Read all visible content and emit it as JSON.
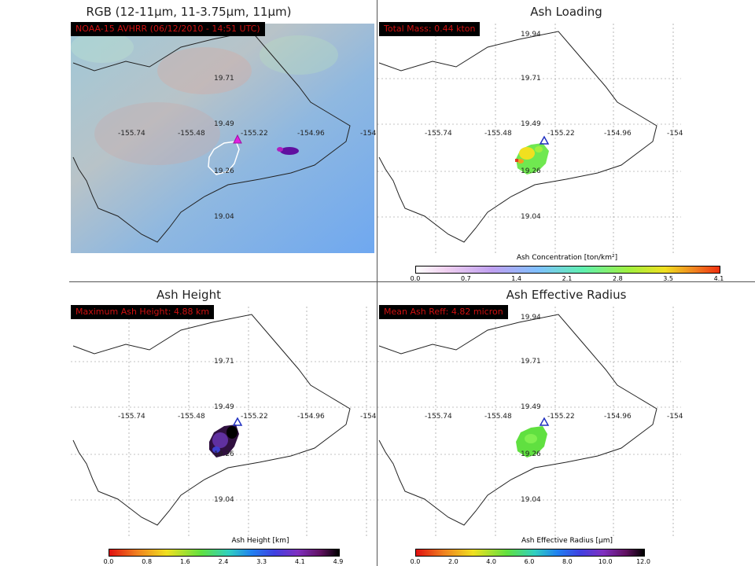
{
  "panels": {
    "rgb": {
      "title": "RGB (12-11µm, 11-3.75µm, 11µm)",
      "banner": "NOAA-15 AVHRR (06/12/2010 - 14:51 UTC)"
    },
    "loading": {
      "title": "Ash Loading",
      "banner": "Total Mass: 0.44 kton",
      "cbar_title": "Ash Concentration [ton/km²]",
      "ticks": [
        "0.0",
        "0.7",
        "1.4",
        "2.1",
        "2.8",
        "3.5",
        "4.1"
      ]
    },
    "height": {
      "title": "Ash Height",
      "banner": "Maximum Ash Height: 4.88 km",
      "cbar_title": "Ash Height [km]",
      "ticks": [
        "0.0",
        "0.8",
        "1.6",
        "2.4",
        "3.3",
        "4.1",
        "4.9"
      ]
    },
    "reff": {
      "title": "Ash Effective Radius",
      "banner": "Mean Ash Reff: 4.82 micron",
      "cbar_title": "Ash Effective Radius [µm]",
      "ticks": [
        "0.0",
        "2.0",
        "4.0",
        "6.0",
        "8.0",
        "10.0",
        "12.0"
      ]
    }
  },
  "grid": {
    "lon_labels": [
      "-155.74",
      "-155.48",
      "-155.22",
      "-154.96",
      "-154"
    ],
    "lat_labels": [
      "19.94",
      "19.71",
      "19.49",
      "19.26",
      "19.04"
    ]
  },
  "colors": {
    "banner_bg": "#000000",
    "banner_text": "#d01010",
    "vent_marker": "#2030c0"
  }
}
